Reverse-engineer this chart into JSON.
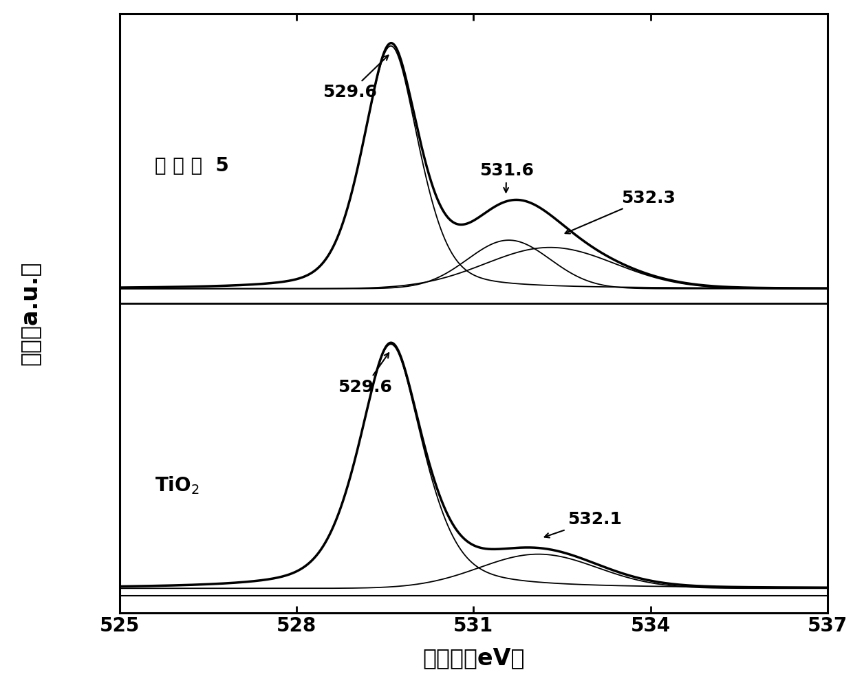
{
  "x_min": 525,
  "x_max": 537,
  "x_ticks": [
    525,
    528,
    531,
    534,
    537
  ],
  "xlabel": "结合能（eV）",
  "ylabel": "强度（a.u.）",
  "top_label": "实 施 例  5",
  "bottom_label": "TiO$_2$",
  "background_color": "#ffffff",
  "line_color": "#000000",
  "lw_envelope": 2.5,
  "lw_component": 1.3
}
